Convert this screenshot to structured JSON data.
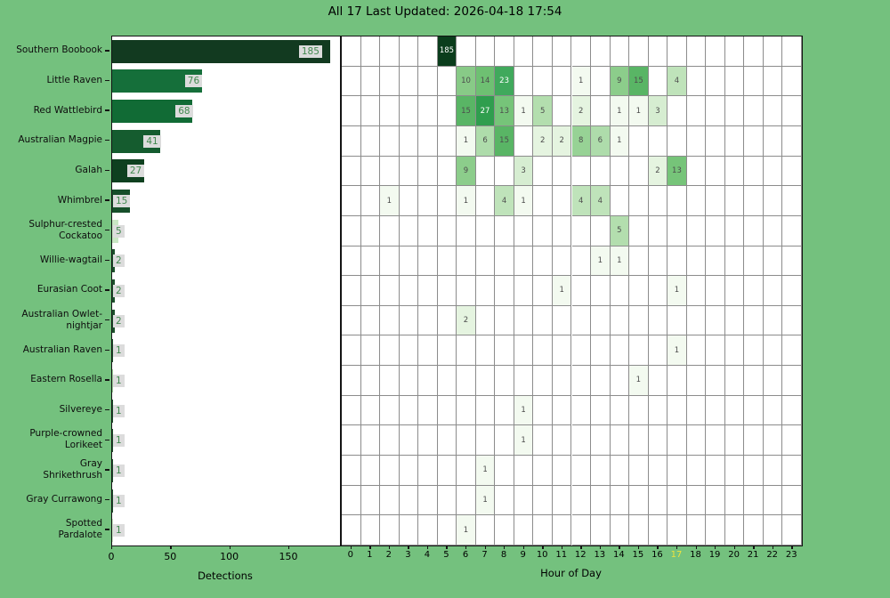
{
  "title": "All 17 Last Updated: 2026-04-18 17:54",
  "colors": {
    "background": "#74c17e",
    "plot_background": "#ffffff",
    "spine": "#141414",
    "cell_border": "#8c8c8c",
    "bar_label_box": "#dcdcdc",
    "bar_label_text": "#41894f",
    "cell_text": "#4d4d4d",
    "cell_text_light": "#ffffff",
    "highlighted_tick": "#efe33d"
  },
  "chart_data": [
    {
      "type": "bar",
      "orientation": "horizontal",
      "title": "All 17 Last Updated: 2026-04-18 17:54",
      "xlabel": "Detections",
      "xticks": [
        0,
        50,
        100,
        150
      ],
      "xlim": [
        0,
        193
      ],
      "categories": [
        "Southern Boobook",
        "Little Raven",
        "Red Wattlebird",
        "Australian Magpie",
        "Galah",
        "Whimbrel",
        "Sulphur-crested Cockatoo",
        "Willie-wagtail",
        "Eurasian Coot",
        "Australian Owlet-nightjar",
        "Australian Raven",
        "Eastern Rosella",
        "Silvereye",
        "Purple-crowned Lorikeet",
        "Gray Shrikethrush",
        "Gray Currawong",
        "Spotted Pardalote"
      ],
      "category_label_lines": [
        [
          "Southern Boobook"
        ],
        [
          "Little Raven"
        ],
        [
          "Red Wattlebird"
        ],
        [
          "Australian Magpie"
        ],
        [
          "Galah"
        ],
        [
          "Whimbrel"
        ],
        [
          "Sulphur-crested",
          "Cockatoo"
        ],
        [
          "Willie-wagtail"
        ],
        [
          "Eurasian Coot"
        ],
        [
          "Australian Owlet-",
          "nightjar"
        ],
        [
          "Australian Raven"
        ],
        [
          "Eastern Rosella"
        ],
        [
          "Silvereye"
        ],
        [
          "Purple-crowned",
          "Lorikeet"
        ],
        [
          "Gray",
          "Shrikethrush"
        ],
        [
          "Gray Currawong"
        ],
        [
          "Spotted",
          "Pardalote"
        ]
      ],
      "values": [
        185,
        76,
        68,
        41,
        27,
        15,
        5,
        2,
        2,
        2,
        1,
        1,
        1,
        1,
        1,
        1,
        1
      ],
      "bar_colors": [
        "#123a20",
        "#156f3a",
        "#116b35",
        "#155c2f",
        "#0e401f",
        "#164f2a",
        "#c9e7c4",
        "#1c512c",
        "#1c512c",
        "#1c512c",
        "#1c512c",
        "#9ccf9a",
        "#1c512c",
        "#1c512c",
        "#1c512c",
        "#1c512c",
        "#c9e7c4"
      ]
    },
    {
      "type": "heatmap",
      "xlabel": "Hour of Day",
      "x": [
        0,
        1,
        2,
        3,
        4,
        5,
        6,
        7,
        8,
        9,
        10,
        11,
        12,
        13,
        14,
        15,
        16,
        17,
        18,
        19,
        20,
        21,
        22,
        23
      ],
      "highlighted_x_tick": 17,
      "categories": [
        "Southern Boobook",
        "Little Raven",
        "Red Wattlebird",
        "Australian Magpie",
        "Galah",
        "Whimbrel",
        "Sulphur-crested Cockatoo",
        "Willie-wagtail",
        "Eurasian Coot",
        "Australian Owlet-nightjar",
        "Australian Raven",
        "Eastern Rosella",
        "Silvereye",
        "Purple-crowned Lorikeet",
        "Gray Shrikethrush",
        "Gray Currawong",
        "Spotted Pardalote"
      ],
      "series": [
        {
          "name": "Southern Boobook",
          "cells": {
            "5": 185
          }
        },
        {
          "name": "Little Raven",
          "cells": {
            "6": 10,
            "7": 14,
            "8": 23,
            "12": 1,
            "14": 9,
            "15": 15,
            "17": 4
          }
        },
        {
          "name": "Red Wattlebird",
          "cells": {
            "6": 15,
            "7": 27,
            "8": 13,
            "9": 1,
            "10": 5,
            "12": 2,
            "14": 1,
            "15": 1,
            "16": 3
          }
        },
        {
          "name": "Australian Magpie",
          "cells": {
            "6": 1,
            "7": 6,
            "8": 15,
            "10": 2,
            "11": 2,
            "12": 8,
            "13": 6,
            "14": 1
          }
        },
        {
          "name": "Galah",
          "cells": {
            "6": 9,
            "9": 3,
            "16": 2,
            "17": 13
          }
        },
        {
          "name": "Whimbrel",
          "cells": {
            "2": 1,
            "6": 1,
            "8": 4,
            "9": 1,
            "12": 4,
            "13": 4
          }
        },
        {
          "name": "Sulphur-crested Cockatoo",
          "cells": {
            "14": 5
          }
        },
        {
          "name": "Willie-wagtail",
          "cells": {
            "13": 1,
            "14": 1
          }
        },
        {
          "name": "Eurasian Coot",
          "cells": {
            "11": 1,
            "17": 1
          }
        },
        {
          "name": "Australian Owlet-nightjar",
          "cells": {
            "6": 2
          }
        },
        {
          "name": "Australian Raven",
          "cells": {
            "17": 1
          }
        },
        {
          "name": "Eastern Rosella",
          "cells": {
            "15": 1
          }
        },
        {
          "name": "Silvereye",
          "cells": {
            "9": 1
          }
        },
        {
          "name": "Purple-crowned Lorikeet",
          "cells": {
            "9": 1
          }
        },
        {
          "name": "Gray Shrikethrush",
          "cells": {
            "7": 1
          }
        },
        {
          "name": "Gray Currawong",
          "cells": {
            "7": 1
          }
        },
        {
          "name": "Spotted Pardalote",
          "cells": {
            "6": 1
          }
        }
      ],
      "value_color_scale": {
        "1": "#f3faf0",
        "2": "#e5f4e0",
        "3": "#d6edd1",
        "4": "#bfe3ba",
        "5": "#b3deae",
        "6": "#aedcab",
        "8": "#97d295",
        "9": "#8ccd8b",
        "10": "#88ca87",
        "13": "#76c479",
        "14": "#6ec072",
        "15": "#59b565",
        "23": "#40a95c",
        "27": "#2f9e4e",
        "185": "#0b3d1c"
      },
      "light_text_threshold": 20
    }
  ]
}
